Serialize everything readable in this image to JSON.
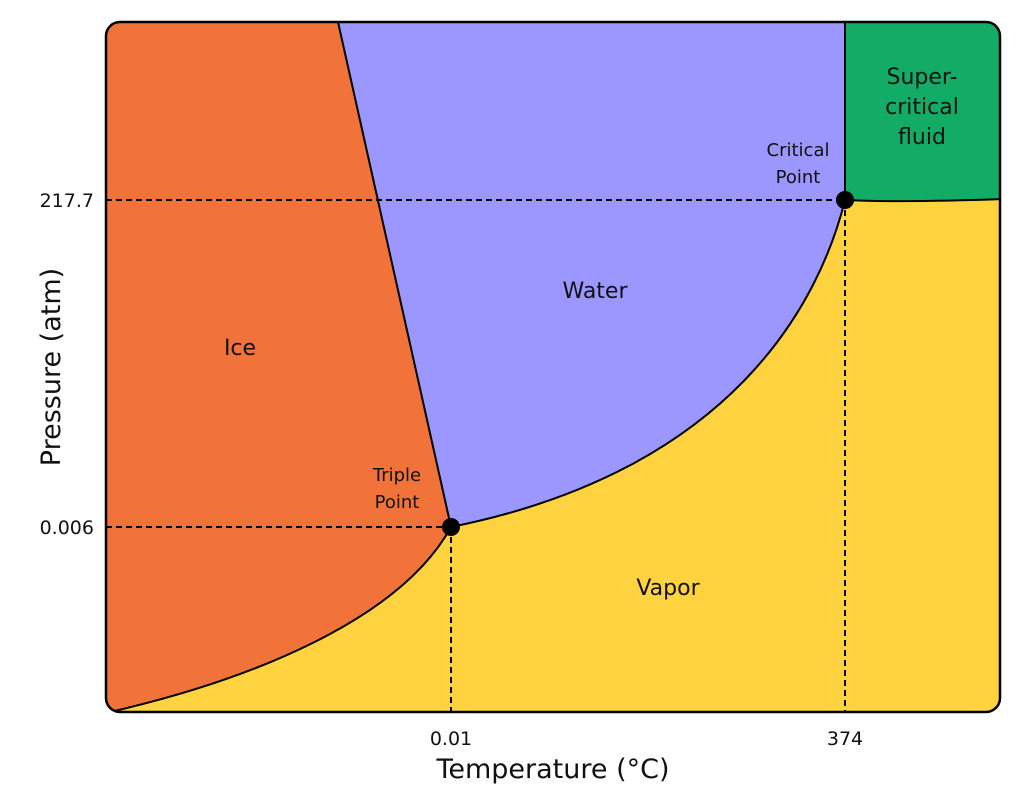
{
  "diagram": {
    "axes": {
      "x_title": "Temperature (°C)",
      "y_title": "Pressure (atm)",
      "x_ticks": [
        "0.01",
        "374"
      ],
      "y_ticks": [
        "217.7",
        "0.006"
      ]
    },
    "regions": {
      "ice": "Ice",
      "water": "Water",
      "vapor": "Vapor",
      "supercritical_line1": "Super-",
      "supercritical_line2": "critical",
      "supercritical_line3": "fluid"
    },
    "points": {
      "triple_line1": "Triple",
      "triple_line2": "Point",
      "critical_line1": "Critical",
      "critical_line2": "Point"
    },
    "colors": {
      "ice": "#F2733A",
      "water": "#9C96FF",
      "vapor": "#FFD23F",
      "supercritical": "#12AC67"
    }
  }
}
